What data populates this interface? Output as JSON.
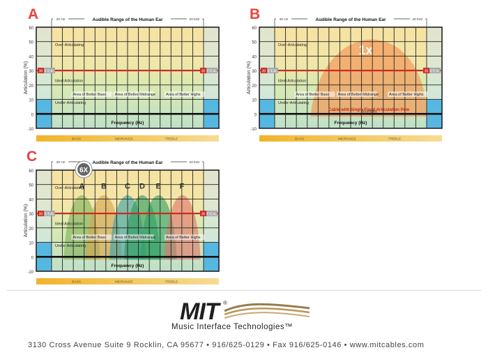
{
  "panels": [
    {
      "label": "A",
      "top_title": "Audible Range of the Human Ear",
      "range_low": "20 Hz",
      "range_high": "20 kHz",
      "y_axis_label": "Articulation (%)",
      "y_ticks": [
        "60",
        "50",
        "40",
        "30",
        "20",
        "10",
        "0",
        "-10"
      ],
      "ideal_value": "30",
      "ideal_label": "IDEAL",
      "zone_over": "Over-Articulating",
      "zone_ideal": "Ideal Articulation",
      "zone_under": "Under-Articulating",
      "areas": [
        "Area of Better Bass",
        "Area of Better Midrange",
        "Area of Better Highs"
      ],
      "x_axis_title": "Frequency (Hz)",
      "bands": [
        "BASS",
        "MIDRANGE",
        "TREBLE"
      ]
    },
    {
      "label": "B",
      "top_title": "Audible Range of the Human Ear",
      "range_low": "20 Hz",
      "range_high": "20 kHz",
      "y_axis_label": "Articulation (%)",
      "y_ticks": [
        "60",
        "50",
        "40",
        "30",
        "20",
        "10",
        "0",
        "-10"
      ],
      "ideal_value": "30",
      "ideal_label": "IDEAL",
      "zone_over": "Over-Articulating",
      "zone_ideal": "Ideal Articulation",
      "zone_under": "Under-Articulating",
      "areas": [
        "Area of Better Bass",
        "Area of Better Midrange",
        "Area of Better Highs"
      ],
      "x_axis_title": "Frequency (Hz)",
      "bands": [
        "BASS",
        "MIDRANGE",
        "TREBLE"
      ],
      "curve_label": "1x",
      "note": "Cable with Single Fixed Articulation Pole",
      "note_sub": "(Example)"
    },
    {
      "label": "C",
      "top_title": "Audible Range of the Human Ear",
      "range_low": "20 Hz",
      "range_high": "20 kHz",
      "y_axis_label": "Articulation (%)",
      "y_ticks": [
        "60",
        "50",
        "40",
        "30",
        "20",
        "10",
        "0",
        "-10"
      ],
      "ideal_value": "30",
      "ideal_label": "IDEAL",
      "zone_over": "Over-Articulating",
      "zone_ideal": "Ideal Articulation",
      "zone_under": "Under-Articulating",
      "areas": [
        "Area of Better Bass",
        "Area of Better Midrange",
        "Area of Better Highs"
      ],
      "x_axis_title": "Frequency (Hz)",
      "bands": [
        "BASS",
        "MIDRANGE",
        "TREBLE"
      ],
      "badge": "6X",
      "pole_letters": [
        "A",
        "B",
        "C",
        "D",
        "E",
        "F"
      ],
      "pole_colors": [
        "#7fb257",
        "#d9a14e",
        "#3f9fa6",
        "#2f9b5a",
        "#2fa26a",
        "#e0766a"
      ]
    }
  ],
  "footer": {
    "logo": "MIT",
    "logo_mark": "®",
    "tagline": "Music Interface Technologies™",
    "contact": "3130 Cross Avenue Suite 9 Rocklin, CA 95677 • 916/625-0129 • Fax 916/625-0146 • www.mitcables.com"
  }
}
